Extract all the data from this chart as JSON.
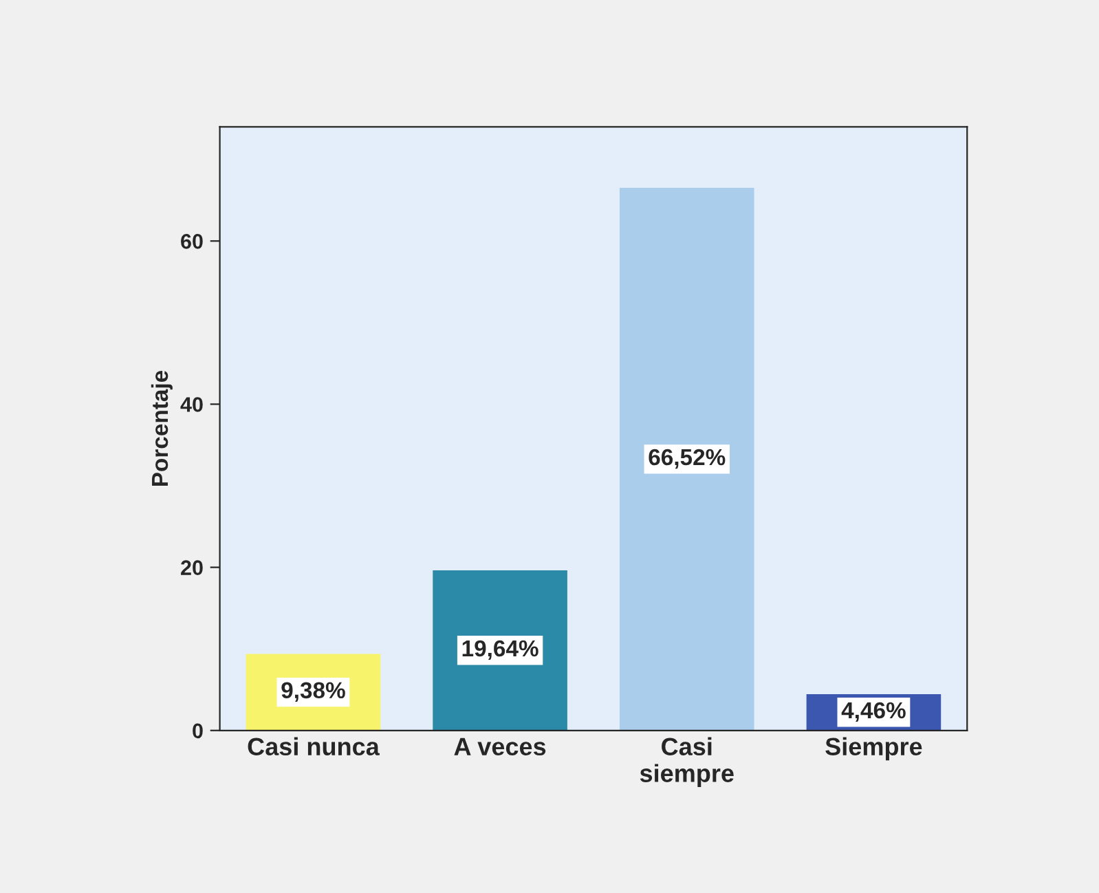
{
  "chart_data": {
    "type": "bar",
    "ylabel": "Porcentaje",
    "categories": [
      "Casi nunca",
      "A veces",
      "Casi\nsiempre",
      "Siempre"
    ],
    "values": [
      9.38,
      19.64,
      66.52,
      4.46
    ],
    "colors": [
      "#f7f36b",
      "#2a8aa8",
      "#aacdec",
      "#3b57b0"
    ],
    "value_labels": [
      "9,38%",
      "19,64%",
      "66,52%",
      "4,46%"
    ],
    "ylim": [
      0,
      74
    ],
    "yticks": [
      0,
      20,
      40,
      60
    ],
    "grid": false,
    "legend": false
  }
}
